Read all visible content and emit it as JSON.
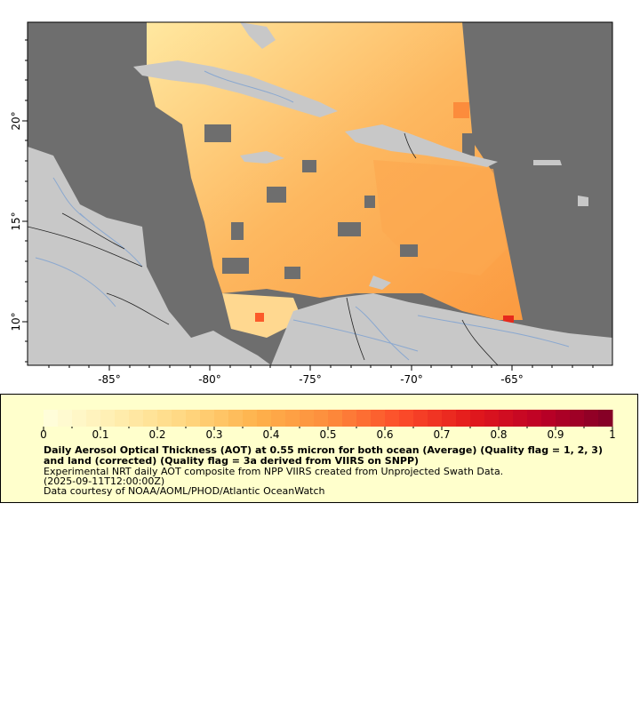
{
  "map": {
    "lon_ticks": [
      "-85°",
      "-80°",
      "-75°",
      "-70°",
      "-65°"
    ],
    "lat_ticks": [
      "20°",
      "15°",
      "10°"
    ],
    "colors": {
      "nodata": "#6e6e6e",
      "land": "#c8c8c8",
      "rivers": "#8aa8d0",
      "borders": "#222222"
    }
  },
  "legend": {
    "ticks": [
      "0",
      "0.1",
      "0.2",
      "0.3",
      "0.4",
      "0.5",
      "0.6",
      "0.7",
      "0.8",
      "0.9",
      "1"
    ],
    "colorscale": [
      "#ffffdd",
      "#ffeeb0",
      "#ffd780",
      "#feb24c",
      "#fd8d3c",
      "#fc4e2a",
      "#e31a1c",
      "#bd0026",
      "#800026"
    ],
    "title": "Daily Aerosol Optical Thickness (AOT) at 0.55 micron for both ocean (Average) (Quality flag = 1, 2, 3) and land (corrected) (Quality flag = 3a derived from VIIRS on SNPP)",
    "subtitle": "Experimental NRT daily AOT composite from NPP VIIRS created from Unprojected Swath Data.",
    "time": "(2025-09-11T12:00:00Z)",
    "credit": "Data courtesy of NOAA/AOML/PHOD/Atlantic OceanWatch"
  }
}
